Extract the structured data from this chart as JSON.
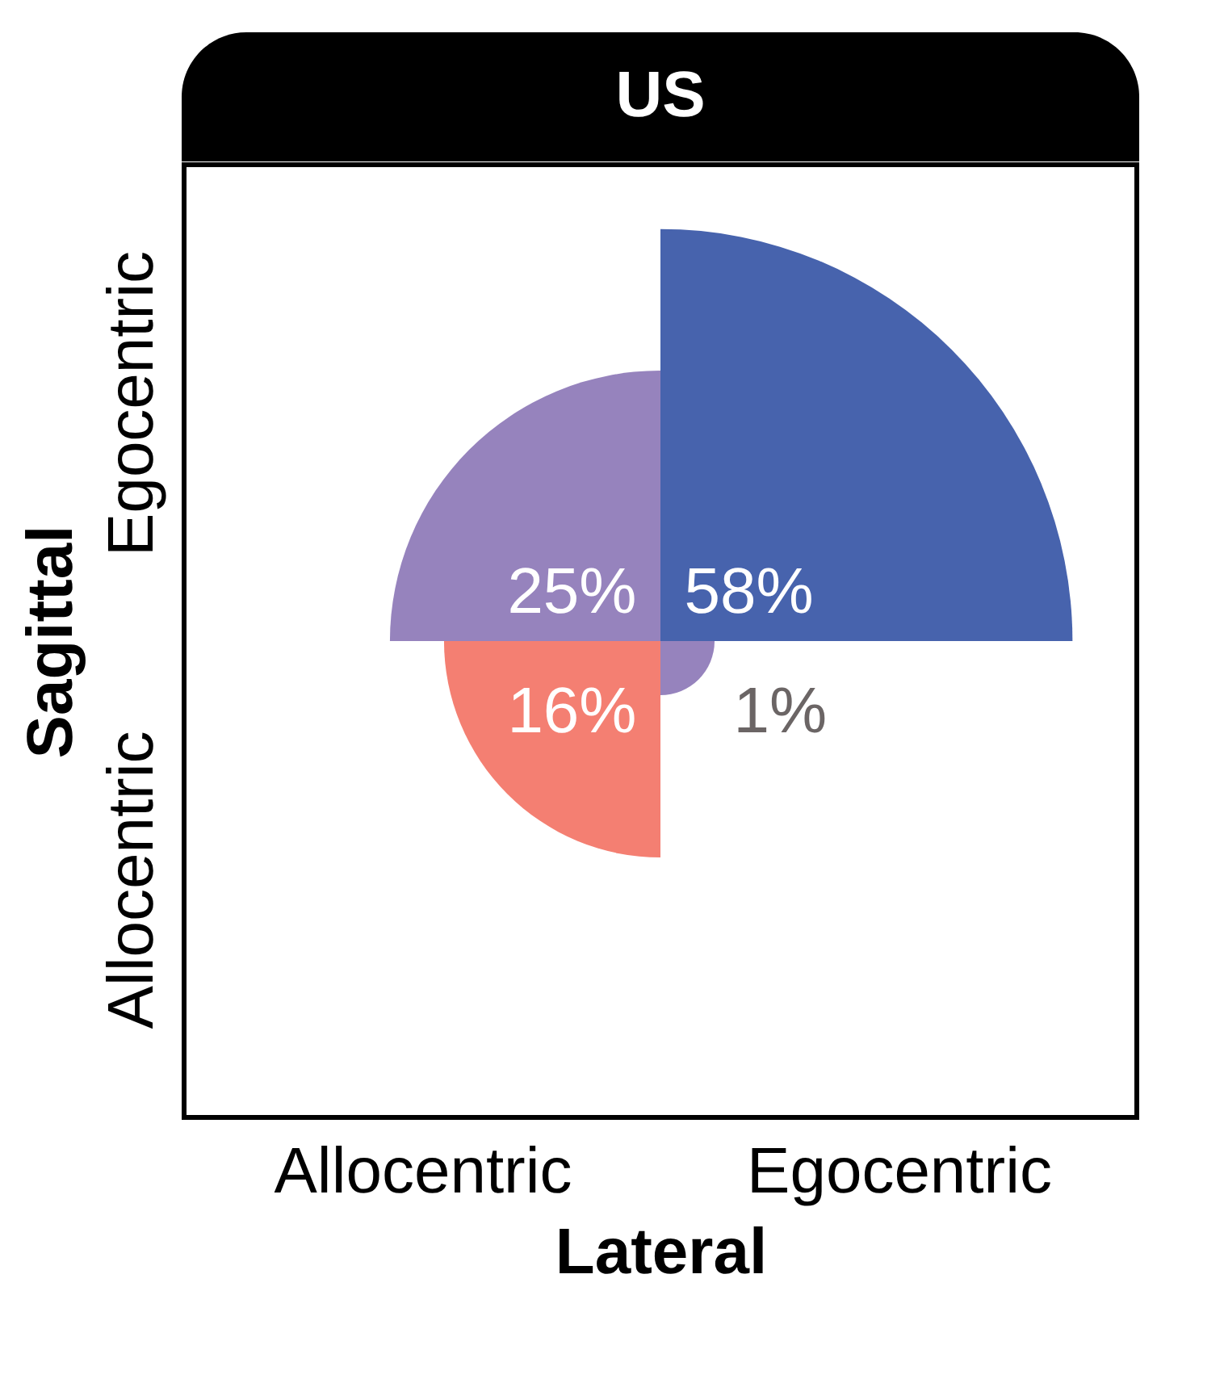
{
  "chart_data": {
    "type": "other",
    "title": "US",
    "xlabel": "Lateral",
    "ylabel": "Sagittal",
    "categories": [
      "Allocentric",
      "Egocentric"
    ],
    "y_categories": [
      "Egocentric",
      "Allocentric"
    ],
    "series": [
      {
        "values": [
          25,
          58
        ],
        "value_labels": [
          "25%",
          "58%"
        ],
        "colors": [
          "#9683bd",
          "#4763ad"
        ]
      },
      {
        "values": [
          16,
          1
        ],
        "value_labels": [
          "16%",
          "1%"
        ],
        "colors": [
          "#f47f72",
          "#9683bd"
        ]
      }
    ]
  }
}
